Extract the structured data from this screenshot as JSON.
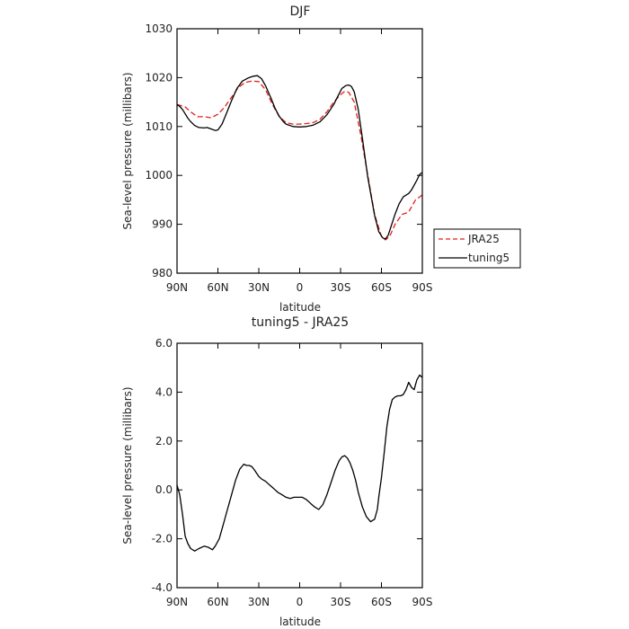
{
  "chart_data": [
    {
      "type": "line",
      "title": "DJF",
      "xlabel": "latitude",
      "ylabel": "Sea-level pressure (millibars)",
      "x_tick_labels": [
        "90N",
        "60N",
        "30N",
        "0",
        "30S",
        "60S",
        "90S"
      ],
      "x_tick_values": [
        90,
        60,
        30,
        0,
        -30,
        -60,
        -90
      ],
      "y_ticks": [
        "980",
        "990",
        "1000",
        "1010",
        "1020",
        "1030"
      ],
      "y_tick_values": [
        980,
        990,
        1000,
        1010,
        1020,
        1030
      ],
      "xlim": [
        90,
        -90
      ],
      "ylim": [
        980,
        1030
      ],
      "legend_position": "right",
      "series": [
        {
          "name": "JRA25",
          "color": "#e0201b",
          "dash": "dashed",
          "x": [
            90,
            84,
            80,
            75,
            70,
            65,
            60,
            55,
            50,
            45,
            40,
            35,
            30,
            25,
            20,
            15,
            10,
            5,
            0,
            -5,
            -10,
            -15,
            -20,
            -25,
            -30,
            -33,
            -36,
            -40,
            -45,
            -50,
            -55,
            -60,
            -63,
            -66,
            -70,
            -75,
            -80,
            -85,
            -90
          ],
          "values": [
            1014.5,
            1014,
            1013,
            1012,
            1012,
            1011.8,
            1012.5,
            1014,
            1016,
            1018,
            1019,
            1019.3,
            1019.2,
            1017.5,
            1014.5,
            1012,
            1010.8,
            1010.5,
            1010.5,
            1010.6,
            1010.8,
            1011.5,
            1013,
            1015,
            1016.5,
            1017.2,
            1017,
            1015,
            1008,
            1000,
            992,
            987.5,
            986.8,
            987.5,
            990,
            992,
            992.5,
            995,
            996
          ]
        },
        {
          "name": "tuning5",
          "color": "#000000",
          "dash": "solid",
          "x": [
            90,
            88,
            86,
            84,
            82,
            80,
            77,
            74,
            70,
            68,
            65,
            62,
            60,
            57,
            54,
            50,
            46,
            42,
            38,
            34,
            31,
            28,
            25,
            21,
            18,
            15,
            12,
            10,
            5,
            0,
            -5,
            -10,
            -15,
            -20,
            -25,
            -28,
            -31,
            -34,
            -36,
            -38,
            -40,
            -43,
            -46,
            -50,
            -55,
            -58,
            -61,
            -63,
            -65,
            -67,
            -70,
            -73,
            -76,
            -80,
            -82,
            -84,
            -86,
            -88,
            -90
          ],
          "values": [
            1014.5,
            1014.1,
            1013.5,
            1012.6,
            1011.7,
            1011,
            1010.2,
            1009.8,
            1009.7,
            1009.8,
            1009.5,
            1009.2,
            1009.3,
            1010.5,
            1012.5,
            1015.3,
            1017.8,
            1019.3,
            1019.9,
            1020.3,
            1020.4,
            1019.8,
            1018.3,
            1015.8,
            1013.7,
            1012.1,
            1011,
            1010.5,
            1010,
            1009.9,
            1010,
            1010.3,
            1011,
            1012.4,
            1014.5,
            1016.2,
            1017.8,
            1018.4,
            1018.5,
            1018.2,
            1017.1,
            1013.5,
            1007.6,
            999.6,
            991.8,
            988.5,
            987.2,
            987,
            987.8,
            989.5,
            992.1,
            994.2,
            995.6,
            996.3,
            997,
            998,
            999,
            1000.2,
            1000.6
          ]
        }
      ]
    },
    {
      "type": "line",
      "title": "tuning5 - JRA25",
      "xlabel": "latitude",
      "ylabel": "Sea-level pressure (millibars)",
      "x_tick_labels": [
        "90N",
        "60N",
        "30N",
        "0",
        "30S",
        "60S",
        "90S"
      ],
      "x_tick_values": [
        90,
        60,
        30,
        0,
        -30,
        -60,
        -90
      ],
      "y_ticks": [
        "-4.0",
        "-2.0",
        "0.0",
        "2.0",
        "4.0",
        "6.0"
      ],
      "y_tick_values": [
        -4,
        -2,
        0,
        2,
        4,
        6
      ],
      "xlim": [
        90,
        -90
      ],
      "ylim": [
        -4,
        6
      ],
      "series": [
        {
          "color": "#000000",
          "dash": "solid",
          "x": [
            90,
            88,
            86,
            84,
            82,
            80,
            77,
            74,
            70,
            67,
            64,
            62,
            59,
            56,
            53,
            50,
            47,
            44,
            41,
            39,
            37,
            35,
            33,
            30,
            28,
            25,
            22,
            19,
            16,
            13,
            10,
            7,
            4,
            1,
            -2,
            -5,
            -8,
            -11,
            -14,
            -17,
            -20,
            -23,
            -26,
            -29,
            -31,
            -33,
            -35,
            -37,
            -39,
            -41,
            -43,
            -46,
            -49,
            -52,
            -55,
            -57,
            -58,
            -60,
            -62,
            -64,
            -66,
            -68,
            -70,
            -72,
            -74,
            -76,
            -78,
            -80,
            -82,
            -84,
            -85,
            -86,
            -88,
            -90
          ],
          "values": [
            0.2,
            -0.2,
            -1.0,
            -1.9,
            -2.2,
            -2.4,
            -2.5,
            -2.4,
            -2.3,
            -2.35,
            -2.45,
            -2.3,
            -2.0,
            -1.4,
            -0.8,
            -0.2,
            0.4,
            0.85,
            1.05,
            1.0,
            1.0,
            0.95,
            0.8,
            0.55,
            0.45,
            0.35,
            0.2,
            0.05,
            -0.1,
            -0.2,
            -0.3,
            -0.35,
            -0.3,
            -0.3,
            -0.3,
            -0.4,
            -0.55,
            -0.7,
            -0.8,
            -0.6,
            -0.2,
            0.3,
            0.8,
            1.2,
            1.35,
            1.4,
            1.3,
            1.1,
            0.8,
            0.4,
            -0.1,
            -0.7,
            -1.1,
            -1.3,
            -1.2,
            -0.8,
            -0.3,
            0.5,
            1.5,
            2.6,
            3.3,
            3.7,
            3.8,
            3.85,
            3.85,
            3.9,
            4.1,
            4.4,
            4.2,
            4.1,
            4.3,
            4.5,
            4.7,
            4.6
          ]
        }
      ]
    }
  ]
}
